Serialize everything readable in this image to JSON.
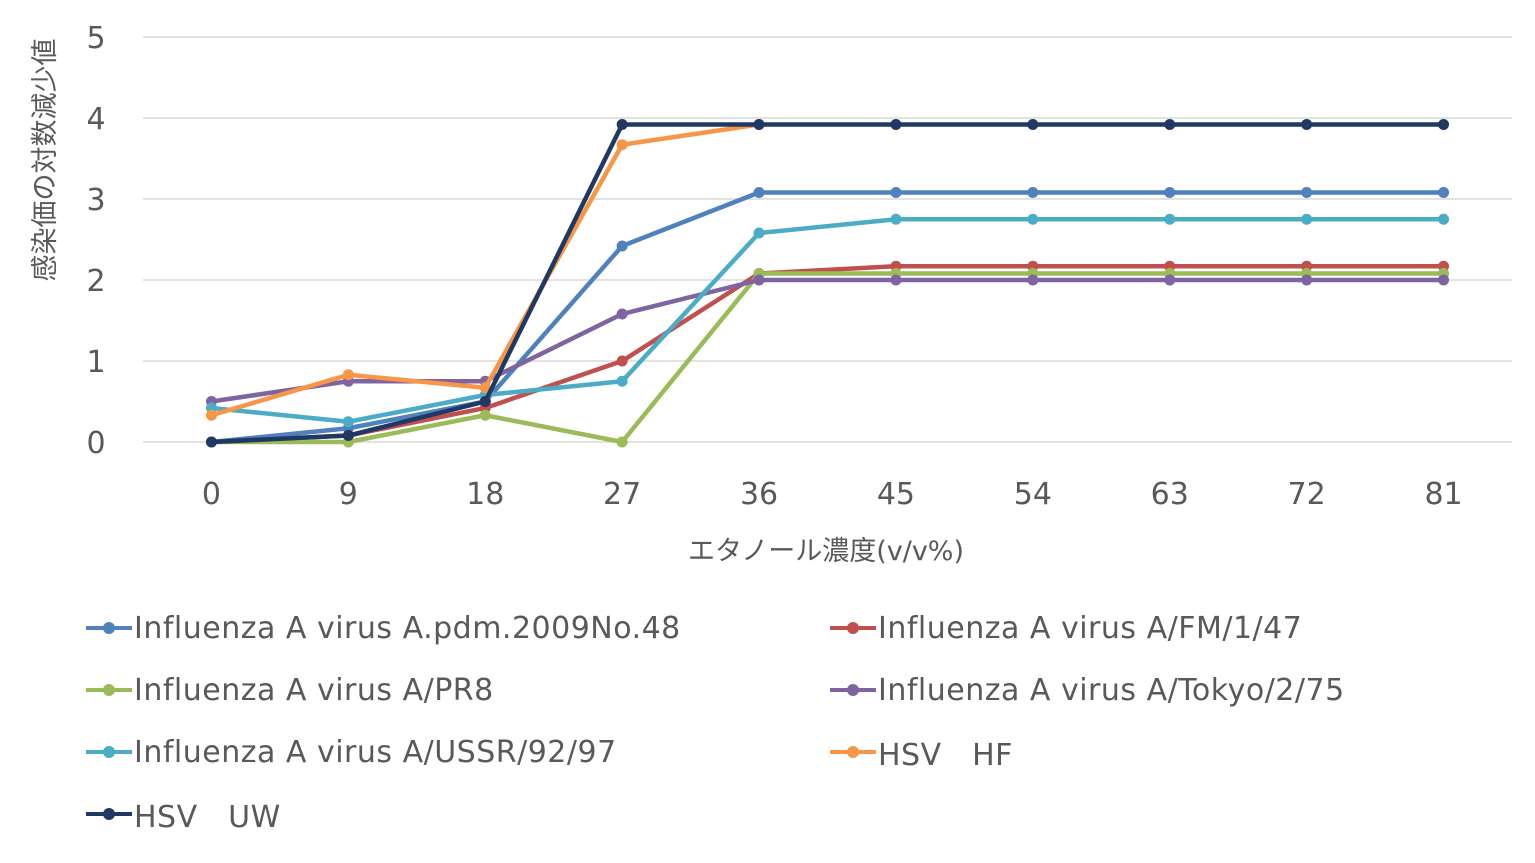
{
  "chart_data": {
    "type": "line",
    "xlabel": "エタノール濃度(v/v%)",
    "ylabel": "感染価の対数減少値",
    "ylim": [
      0,
      5
    ],
    "yticks": [
      "0",
      "1",
      "2",
      "3",
      "4",
      "5"
    ],
    "categories": [
      "0",
      "9",
      "18",
      "27",
      "36",
      "45",
      "54",
      "63",
      "72",
      "81"
    ],
    "grid": true,
    "legend_position": "bottom",
    "series": [
      {
        "name": "Influenza A virus A.pdm.2009No.48",
        "color": "#4F81BD",
        "values": [
          0,
          0.17,
          0.5,
          2.42,
          3.08,
          3.08,
          3.08,
          3.08,
          3.08,
          3.08
        ]
      },
      {
        "name": "Influenza A virus A/FM/1/47",
        "color": "#C0504D",
        "values": [
          0,
          0.08,
          0.42,
          1.0,
          2.08,
          2.17,
          2.17,
          2.17,
          2.17,
          2.17
        ]
      },
      {
        "name": "Influenza A virus A/PR8",
        "color": "#9BBB59",
        "values": [
          0,
          0,
          0.33,
          0,
          2.08,
          2.08,
          2.08,
          2.08,
          2.08,
          2.08
        ]
      },
      {
        "name": "Influenza A virus A/Tokyo/2/75",
        "color": "#8064A2",
        "values": [
          0.5,
          0.75,
          0.75,
          1.58,
          2.0,
          2.0,
          2.0,
          2.0,
          2.0,
          2.0
        ]
      },
      {
        "name": "Influenza A virus A/USSR/92/97",
        "color": "#4BACC6",
        "values": [
          0.42,
          0.25,
          0.58,
          0.75,
          2.58,
          2.75,
          2.75,
          2.75,
          2.75,
          2.75
        ]
      },
      {
        "name": "HSV　HF",
        "color": "#F79646",
        "values": [
          0.33,
          0.83,
          0.67,
          3.67,
          3.92,
          null,
          null,
          null,
          null,
          null
        ]
      },
      {
        "name": "HSV　UW",
        "color": "#1F3864",
        "values": [
          0,
          0.08,
          0.5,
          3.92,
          3.92,
          3.92,
          3.92,
          3.92,
          3.92,
          3.92
        ]
      }
    ]
  }
}
